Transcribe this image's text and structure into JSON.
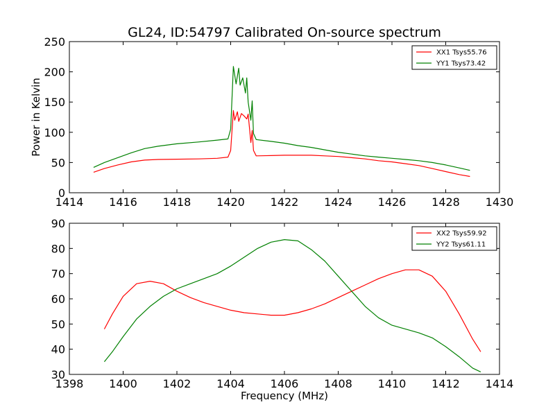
{
  "chart_data": [
    {
      "type": "line",
      "title": "GL24, ID:54797 Calibrated On-source spectrum",
      "xlabel": "",
      "ylabel": "Power in Kelvin",
      "xlim": [
        1414,
        1430
      ],
      "ylim": [
        0,
        250
      ],
      "xticks": [
        "1414",
        "1416",
        "1418",
        "1420",
        "1422",
        "1424",
        "1426",
        "1428",
        "1430"
      ],
      "yticks": [
        "0",
        "50",
        "100",
        "150",
        "200",
        "250"
      ],
      "legend_position": "top-right",
      "series": [
        {
          "name": "XX1 Tsys55.76",
          "color": "#ff0000",
          "x": [
            1414.9,
            1415.3,
            1415.8,
            1416.3,
            1416.8,
            1417.3,
            1418.0,
            1418.8,
            1419.5,
            1419.9,
            1420.0,
            1420.1,
            1420.15,
            1420.25,
            1420.3,
            1420.4,
            1420.5,
            1420.6,
            1420.65,
            1420.75,
            1420.8,
            1420.85,
            1420.95,
            1421.5,
            1422.0,
            1422.5,
            1423.0,
            1423.5,
            1424.0,
            1424.5,
            1425.0,
            1425.5,
            1426.0,
            1426.5,
            1427.0,
            1427.5,
            1428.0,
            1428.5,
            1428.9
          ],
          "values": [
            34,
            40,
            46,
            51,
            54,
            55,
            55.5,
            56,
            57,
            59,
            70,
            136,
            120,
            134,
            118,
            131,
            127,
            122,
            130,
            83,
            103,
            70,
            61,
            61.5,
            62,
            62,
            62,
            61,
            60,
            58,
            56,
            53,
            51,
            48,
            45,
            40,
            35,
            30,
            27
          ]
        },
        {
          "name": "YY1 Tsys73.42",
          "color": "#008000",
          "x": [
            1414.9,
            1415.3,
            1415.8,
            1416.3,
            1416.8,
            1417.3,
            1418.0,
            1418.8,
            1419.5,
            1419.9,
            1420.0,
            1420.1,
            1420.2,
            1420.3,
            1420.35,
            1420.45,
            1420.55,
            1420.6,
            1420.65,
            1420.75,
            1420.8,
            1420.85,
            1420.95,
            1421.5,
            1422.0,
            1422.5,
            1423.0,
            1423.5,
            1424.0,
            1424.5,
            1425.0,
            1425.5,
            1426.0,
            1426.5,
            1427.0,
            1427.5,
            1428.0,
            1428.5,
            1428.9
          ],
          "values": [
            42,
            50,
            58,
            66,
            73,
            77,
            81,
            84,
            87,
            89,
            105,
            209,
            180,
            206,
            178,
            190,
            165,
            190,
            150,
            120,
            152,
            98,
            88,
            85,
            82,
            78,
            75,
            71,
            67,
            64,
            61,
            59,
            57,
            55,
            53,
            50,
            46,
            41,
            37
          ]
        }
      ]
    },
    {
      "type": "line",
      "title": "",
      "xlabel": "Frequency (MHz)",
      "ylabel": "",
      "xlim": [
        1398,
        1414
      ],
      "ylim": [
        30,
        90
      ],
      "xticks": [
        "1398",
        "1400",
        "1402",
        "1404",
        "1406",
        "1408",
        "1410",
        "1412",
        "1414"
      ],
      "yticks": [
        "30",
        "40",
        "50",
        "60",
        "70",
        "80",
        "90"
      ],
      "legend_position": "top-right",
      "series": [
        {
          "name": "XX2 Tsys59.92",
          "color": "#ff0000",
          "x": [
            1399.3,
            1399.6,
            1400.0,
            1400.5,
            1401.0,
            1401.5,
            1402.0,
            1402.5,
            1403.0,
            1403.5,
            1404.0,
            1404.5,
            1405.0,
            1405.5,
            1406.0,
            1406.5,
            1407.0,
            1407.5,
            1408.0,
            1408.5,
            1409.0,
            1409.5,
            1410.0,
            1410.5,
            1411.0,
            1411.5,
            1412.0,
            1412.5,
            1413.0,
            1413.3
          ],
          "values": [
            48,
            54,
            61,
            66,
            67,
            66,
            63,
            60.5,
            58.5,
            57,
            55.5,
            54.5,
            54,
            53.5,
            53.5,
            54.5,
            56,
            58,
            60.5,
            63,
            65.5,
            68,
            70,
            71.5,
            71.5,
            69,
            63,
            54,
            44,
            39
          ]
        },
        {
          "name": "YY2 Tsys61.11",
          "color": "#008000",
          "x": [
            1399.3,
            1399.6,
            1400.0,
            1400.5,
            1401.0,
            1401.5,
            1402.0,
            1402.5,
            1403.0,
            1403.5,
            1404.0,
            1404.5,
            1405.0,
            1405.5,
            1406.0,
            1406.5,
            1407.0,
            1407.5,
            1408.0,
            1408.5,
            1409.0,
            1409.5,
            1410.0,
            1410.5,
            1411.0,
            1411.5,
            1412.0,
            1412.5,
            1413.0,
            1413.3
          ],
          "values": [
            35,
            39,
            45,
            52,
            57,
            61,
            64,
            66,
            68,
            70,
            73,
            76.5,
            80,
            82.5,
            83.5,
            83,
            79.5,
            75,
            69,
            63,
            57,
            52.5,
            49.5,
            48,
            46.5,
            44.5,
            41,
            37,
            32.5,
            31
          ]
        }
      ]
    }
  ]
}
